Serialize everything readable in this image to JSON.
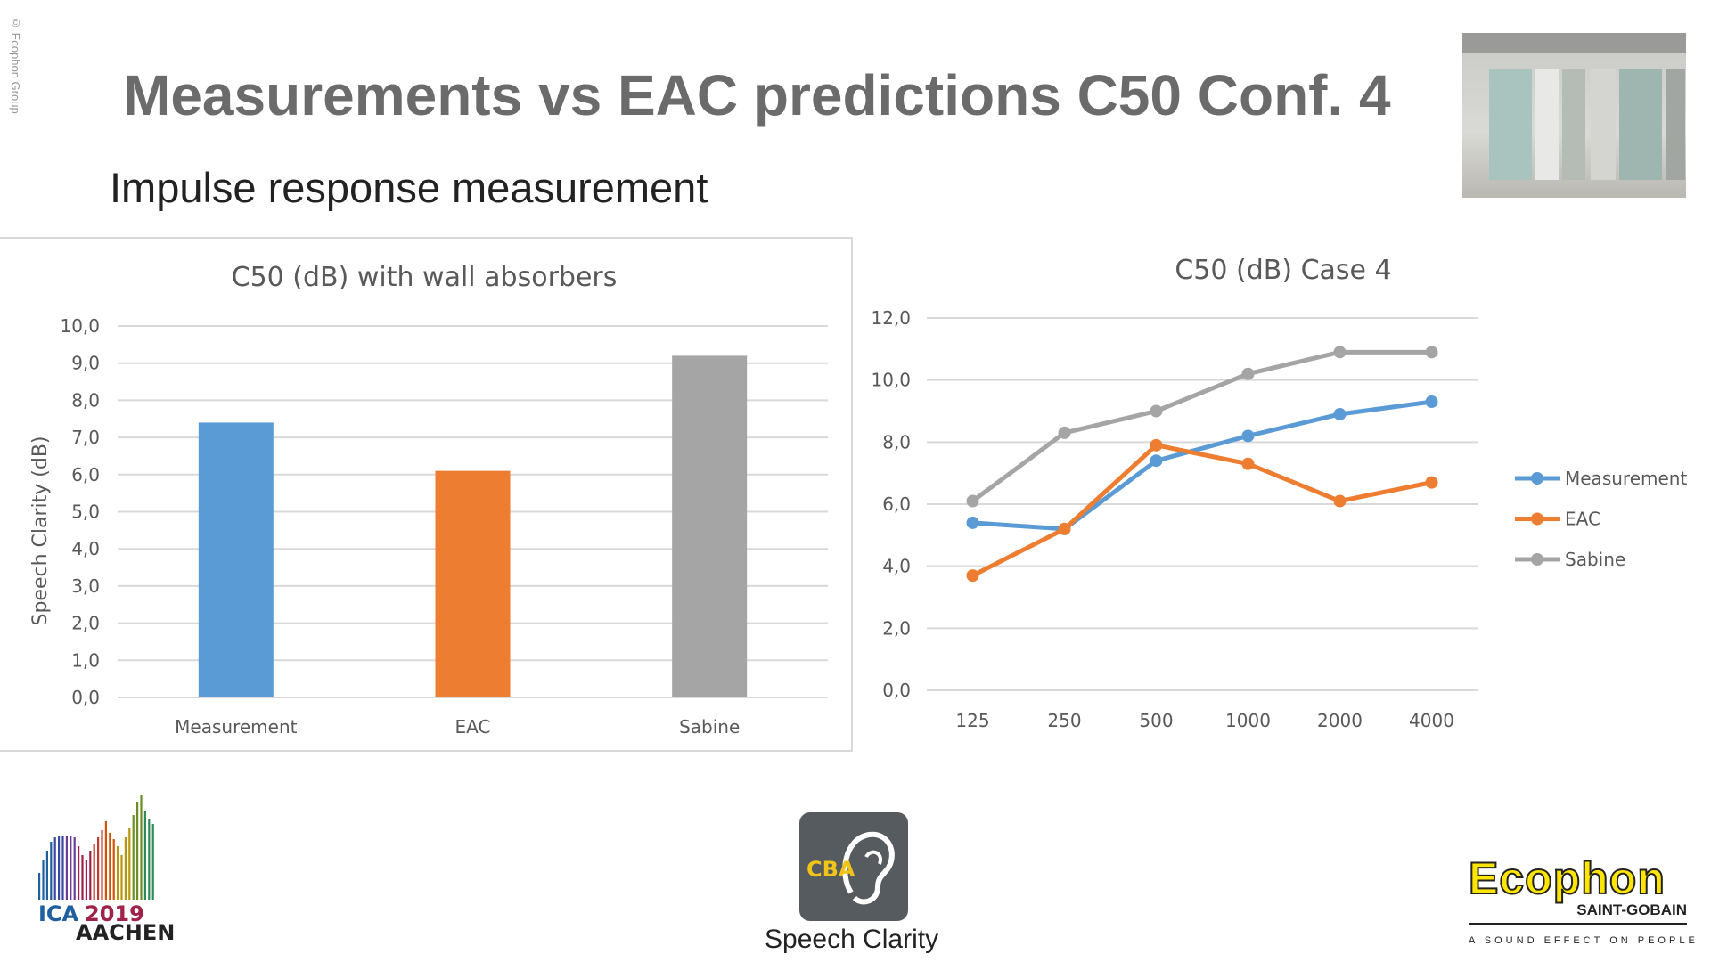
{
  "header": {
    "copyright": "© Ecophon Group",
    "title": "Measurements vs EAC predictions C50 Conf. 4",
    "subtitle": "Impulse response measurement"
  },
  "footer": {
    "speech_clarity": "Speech Clarity",
    "cba_text": "CBA",
    "ica_logo": "ICA 2019 AACHEN",
    "ecophon_logo": "Ecophon",
    "ecophon_sub": "SAINT-GOBAIN",
    "ecophon_tagline": "A SOUND EFFECT ON PEOPLE"
  },
  "colors": {
    "measurement": "#5b9bd5",
    "eac": "#ed7d31",
    "sabine": "#a5a5a5"
  },
  "chart_data": [
    {
      "type": "bar",
      "title": "C50 (dB) with wall absorbers",
      "ylabel": "Speech Clarity (dB)",
      "xlabel": "",
      "categories": [
        "Measurement",
        "EAC",
        "Sabine"
      ],
      "values": [
        7.4,
        6.1,
        9.2
      ],
      "ylim": [
        0,
        10
      ],
      "yticks": [
        "0,0",
        "1,0",
        "2,0",
        "3,0",
        "4,0",
        "5,0",
        "6,0",
        "7,0",
        "8,0",
        "9,0",
        "10,0"
      ],
      "grid": true
    },
    {
      "type": "line",
      "title": "C50 (dB) Case 4",
      "categories": [
        "125",
        "250",
        "500",
        "1000",
        "2000",
        "4000"
      ],
      "ylim": [
        0,
        12
      ],
      "yticks": [
        "0,0",
        "2,0",
        "4,0",
        "6,0",
        "8,0",
        "10,0",
        "12,0"
      ],
      "grid": true,
      "legend": "right",
      "series": [
        {
          "name": "Measurement",
          "values": [
            5.4,
            5.2,
            7.4,
            8.2,
            8.9,
            9.3
          ]
        },
        {
          "name": "EAC",
          "values": [
            3.7,
            5.2,
            7.9,
            7.3,
            6.1,
            6.7
          ]
        },
        {
          "name": "Sabine",
          "values": [
            6.1,
            8.3,
            9.0,
            10.2,
            10.9,
            10.9
          ]
        }
      ]
    }
  ]
}
